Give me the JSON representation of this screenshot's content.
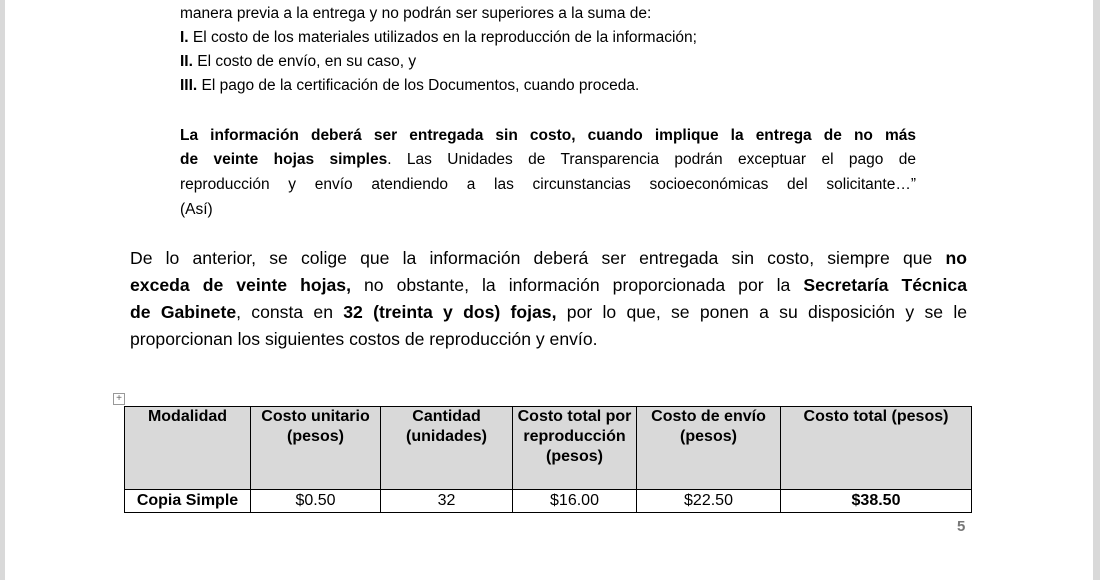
{
  "quote_lines": [
    [
      {
        "t": "manera previa a la entrega y no podrán ser superiores a la suma de:"
      }
    ],
    [
      {
        "t": "I.",
        "b": true
      },
      {
        "t": " El costo de los materiales utilizados en la reproducción de la información;"
      }
    ],
    [
      {
        "t": "II.",
        "b": true
      },
      {
        "t": " El costo de envío, en su caso, y"
      }
    ],
    [
      {
        "t": "III.",
        "b": true
      },
      {
        "t": " El pago de la certificación de los Documentos, cuando proceda."
      }
    ],
    [
      {
        "t": "La información deberá ser entregada sin costo, cuando implique la entrega de no más",
        "b": true
      }
    ],
    [
      {
        "t": "de veinte hojas simples",
        "b": true
      },
      {
        "t": ". Las Unidades de Transparencia podrán exceptuar el pago de"
      }
    ],
    [
      {
        "t": "reproducción y envío atendiendo a las circunstancias socioeconómicas del solicitante…”"
      }
    ],
    [
      {
        "t": "(Así)"
      }
    ]
  ],
  "main_lines": [
    [
      {
        "t": "De lo anterior, se colige que la información deberá ser entregada sin costo, siempre que "
      },
      {
        "t": "no",
        "b": true
      }
    ],
    [
      {
        "t": "exceda de veinte hojas,",
        "b": true
      },
      {
        "t": " no obstante, la información proporcionada por la "
      },
      {
        "t": "Secretaría Técnica",
        "b": true
      }
    ],
    [
      {
        "t": "de Gabinete",
        "b": true
      },
      {
        "t": ", consta en "
      },
      {
        "t": "32 (treinta y dos) fojas,",
        "b": true
      },
      {
        "t": " por lo que, se ponen a su disposición y se le"
      }
    ],
    [
      {
        "t": "proporcionan los siguientes costos de reproducción y envío."
      }
    ]
  ],
  "table": {
    "headers": [
      "Modalidad",
      "Costo unitario (pesos)",
      "Cantidad (unidades)",
      "Costo total por reproducción (pesos)",
      "Costo de envío (pesos)",
      "Costo total (pesos)"
    ],
    "rows": [
      [
        "Copia Simple",
        "$0.50",
        "32",
        "$16.00",
        "$22.50",
        "$38.50"
      ]
    ]
  },
  "page_number": "5"
}
